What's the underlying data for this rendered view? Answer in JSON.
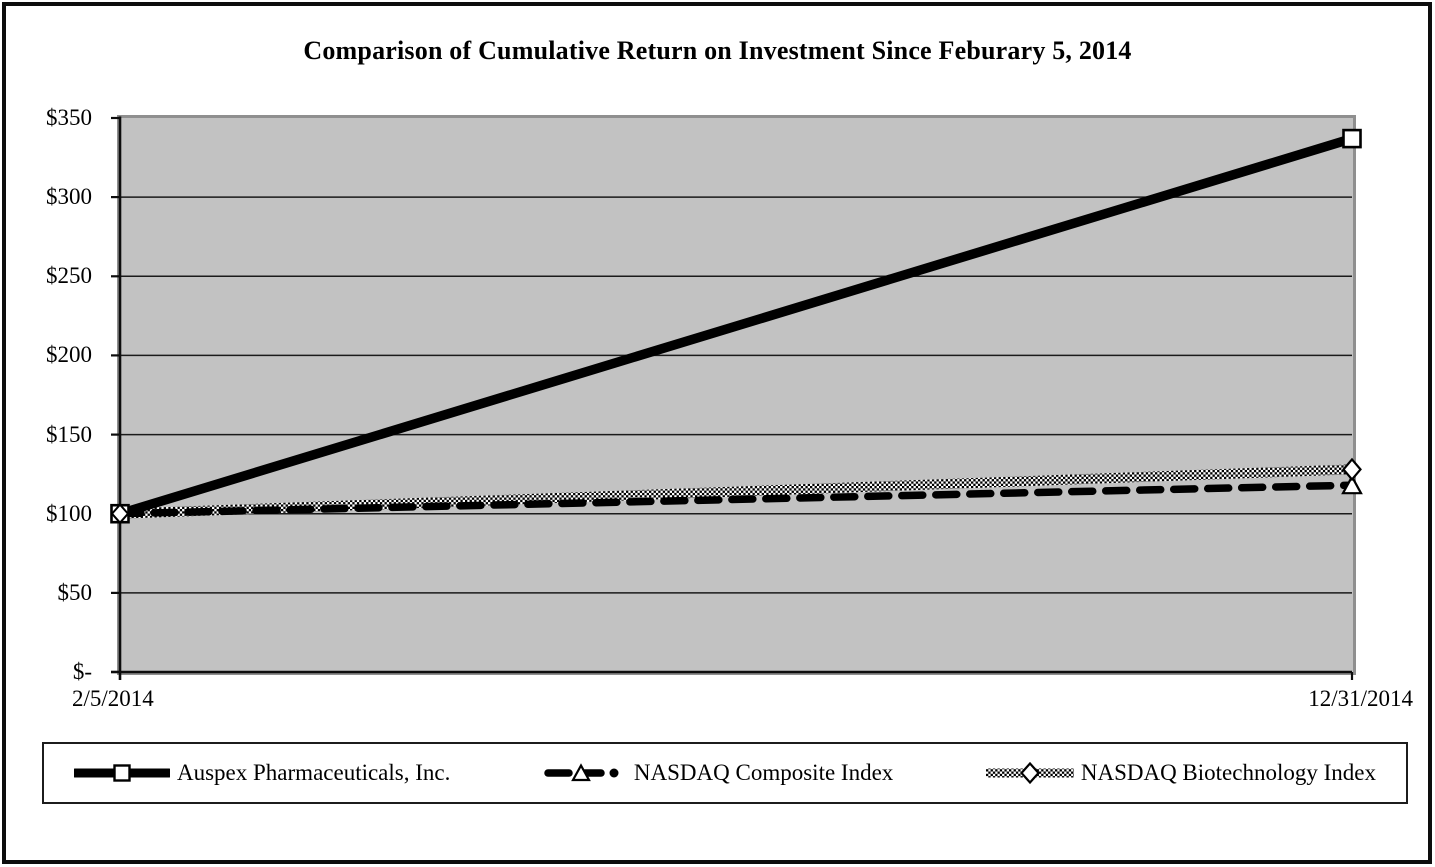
{
  "chart_data": {
    "type": "line",
    "title": "Comparison of Cumulative Return on Investment Since Feburary 5, 2014",
    "x": [
      "2/5/2014",
      "12/31/2014"
    ],
    "series": [
      {
        "id": "auspex",
        "name": "Auspex Pharmaceuticals, Inc.",
        "values": [
          100,
          337
        ],
        "line_style": "solid-thick",
        "marker": "square",
        "color": "#000000"
      },
      {
        "id": "composite",
        "name": "NASDAQ Composite Index",
        "values": [
          100,
          118
        ],
        "line_style": "dashed",
        "marker": "triangle",
        "color": "#000000"
      },
      {
        "id": "biotech",
        "name": "NASDAQ Biotechnology Index",
        "values": [
          100,
          128
        ],
        "line_style": "checkered",
        "marker": "diamond",
        "color": "#000000"
      }
    ],
    "ylim": [
      0,
      350
    ],
    "ytick_interval": 50,
    "ytick_labels": [
      "$-",
      "$50",
      "$100",
      "$150",
      "$200",
      "$250",
      "$300",
      "$350"
    ],
    "grid": "horizontal-only",
    "legend_position": "bottom",
    "plot_bg_color": "#c2c2c2",
    "gridline_color": "#1a1a1a",
    "marker_fill": "#ffffff"
  }
}
